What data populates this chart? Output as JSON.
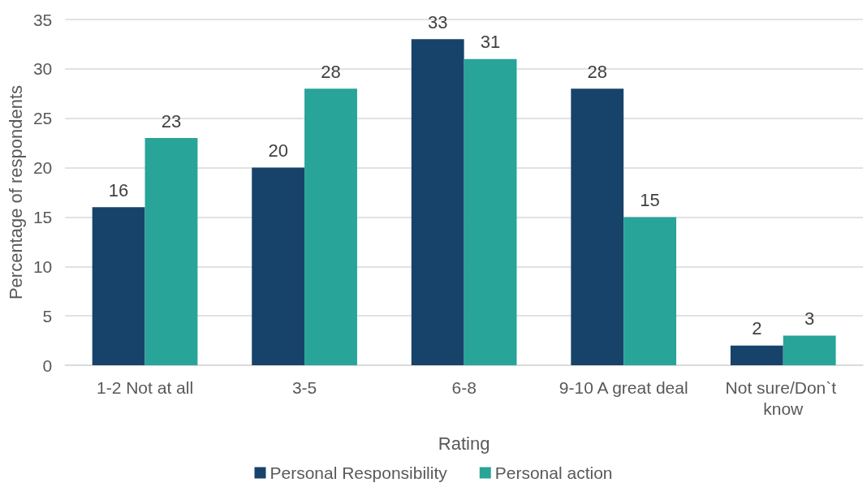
{
  "chart_data": {
    "type": "bar",
    "xlabel": "Rating",
    "ylabel": "Percentage of respondents",
    "categories": [
      "1-2 Not at all",
      "3-5",
      "6-8",
      "9-10 A great deal",
      "Not sure/Don`t know"
    ],
    "series": [
      {
        "name": "Personal Responsibility",
        "color": "#17436b",
        "values": [
          16,
          20,
          33,
          28,
          2
        ]
      },
      {
        "name": "Personal action",
        "color": "#28a499",
        "values": [
          23,
          28,
          31,
          15,
          3
        ]
      }
    ],
    "ylim": [
      0,
      35
    ],
    "yticks": [
      0,
      5,
      10,
      15,
      20,
      25,
      30,
      35
    ],
    "grid": "y",
    "legend": "bottom",
    "data_labels": true
  }
}
